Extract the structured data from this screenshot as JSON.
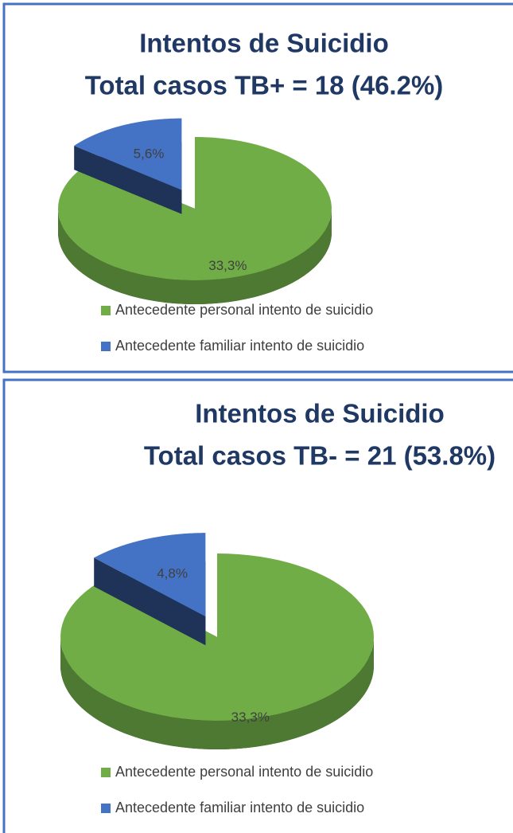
{
  "chart_data": [
    {
      "type": "pie",
      "title": "Intentos de Suicidio",
      "subtitle": "Total casos TB+ = 18 (46.2%)",
      "categories": [
        "Antecedente personal intento de suicidio",
        "Antecedente familiar intento de suicidio"
      ],
      "values": [
        33.3,
        5.6
      ],
      "value_labels": [
        "33,3%",
        "5,6%"
      ],
      "colors": [
        "#70ad47",
        "#4472c4"
      ],
      "legend": "bottom"
    },
    {
      "type": "pie",
      "title": "Intentos de Suicidio",
      "subtitle": "Total casos TB- = 21 (53.8%)",
      "categories": [
        "Antecedente personal intento de suicidio",
        "Antecedente familiar intento de suicidio"
      ],
      "values": [
        33.3,
        4.8
      ],
      "value_labels": [
        "33,3%",
        "4,8%"
      ],
      "colors": [
        "#70ad47",
        "#4472c4"
      ],
      "legend": "bottom"
    }
  ]
}
